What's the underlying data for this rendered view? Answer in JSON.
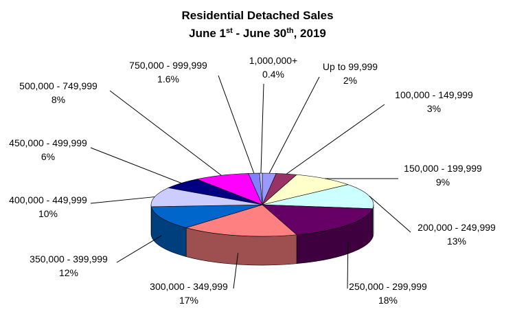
{
  "chart_data": {
    "type": "pie3d",
    "title": "Residential Detached Sales",
    "subtitle": [
      "June 1",
      "st",
      " - June 30",
      "th",
      ", 2019"
    ],
    "categories": [
      "Up to 99,999",
      "100,000 - 149,999",
      "150,000 - 199,999",
      "200,000 - 249,999",
      "250,000 - 299,999",
      "300,000 - 349,999",
      "350,000 - 399,999",
      "400,000 - 449,999",
      "450,000 - 499,999",
      "500,000 - 749,999",
      "750,000 - 999,999",
      "1,000,000+"
    ],
    "values": [
      2,
      3,
      9,
      13,
      18,
      17,
      12,
      10,
      6,
      8,
      1.6,
      0.4
    ],
    "value_labels": [
      "2%",
      "3%",
      "9%",
      "13%",
      "18%",
      "17%",
      "12%",
      "10%",
      "6%",
      "8%",
      "1.6%",
      "0.4%"
    ],
    "colors": [
      "#9999ff",
      "#993366",
      "#ffffcc",
      "#ccffff",
      "#660066",
      "#ff8080",
      "#0066cc",
      "#ccccff",
      "#000080",
      "#ff00ff",
      "#8080ff",
      "#ccccff"
    ]
  }
}
